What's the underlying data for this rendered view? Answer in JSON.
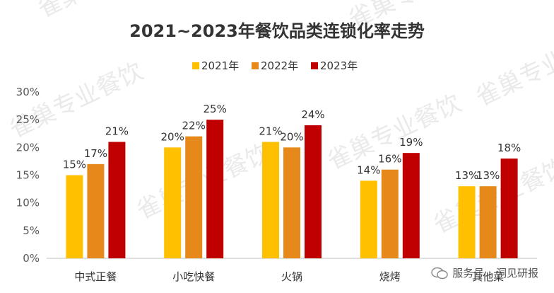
{
  "chart_data": {
    "type": "bar",
    "title": "2021~2023年餐饮品类连锁化率走势",
    "categories": [
      "中式正餐",
      "小吃快餐",
      "火锅",
      "烧烤",
      "其他菜"
    ],
    "series": [
      {
        "name": "2021年",
        "color": "#FFC000",
        "values": [
          15,
          20,
          21,
          14,
          13
        ],
        "labels": [
          "15%",
          "20%",
          "21%",
          "14%",
          "13%"
        ]
      },
      {
        "name": "2022年",
        "color": "#E6891A",
        "values": [
          17,
          22,
          20,
          16,
          13
        ],
        "labels": [
          "17%",
          "22%",
          "20%",
          "16%",
          "13%"
        ]
      },
      {
        "name": "2023年",
        "color": "#C00000",
        "values": [
          21,
          25,
          24,
          19,
          18
        ],
        "labels": [
          "21%",
          "25%",
          "24%",
          "19%",
          "18%"
        ]
      }
    ],
    "y_ticks": [
      "0%",
      "5%",
      "10%",
      "15%",
      "20%",
      "25%",
      "30%"
    ],
    "ylim": [
      0,
      30
    ],
    "legend_position": "top-center",
    "xlabel": "",
    "ylabel": ""
  },
  "watermark": {
    "text": "雀巢专业餐饮"
  },
  "footer": {
    "service": "服务号",
    "separator": "·",
    "name": "洞见研报"
  }
}
